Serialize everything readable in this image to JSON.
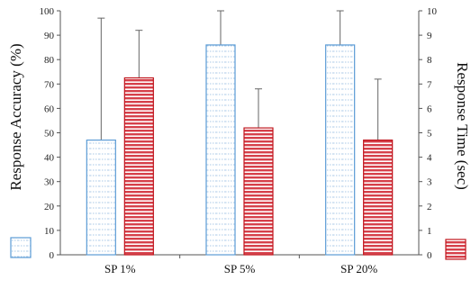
{
  "chart_data": {
    "type": "bar",
    "categories": [
      "SP 1%",
      "SP 5%",
      "SP 20%"
    ],
    "y_left": {
      "label": "Response Accuracy  (%)",
      "lim": [
        0,
        100
      ],
      "ticks": [
        0,
        10,
        20,
        30,
        40,
        50,
        60,
        70,
        80,
        90,
        100
      ]
    },
    "y_right": {
      "label": "Response Time (sec)",
      "lim": [
        0,
        10
      ],
      "ticks": [
        0,
        1,
        2,
        3,
        4,
        5,
        6,
        7,
        8,
        9,
        10
      ]
    },
    "series": [
      {
        "axis": "left",
        "values": [
          47,
          86,
          86
        ],
        "error_upper": [
          97,
          100,
          100
        ],
        "color": "#5b9bd5"
      },
      {
        "axis": "right",
        "values": [
          7.25,
          5.2,
          4.7
        ],
        "error_upper": [
          9.2,
          6.8,
          7.2
        ],
        "color": "#c0141c"
      }
    ],
    "grid": false,
    "legend": "left and right of the plot, beside the axis titles"
  }
}
